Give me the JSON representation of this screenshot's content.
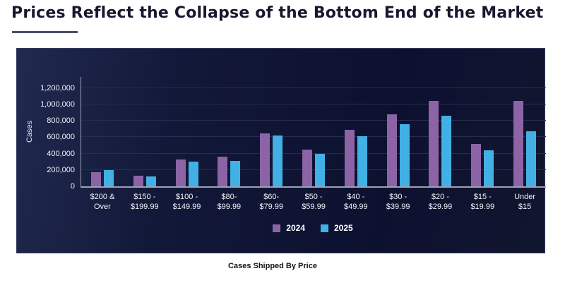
{
  "page": {
    "title": "Prices Reflect the Collapse of the Bottom End of the Market",
    "caption": "Cases Shipped By Price"
  },
  "chart_data": {
    "type": "bar",
    "title": "",
    "xlabel": "",
    "ylabel": "Cases",
    "ylim": [
      0,
      1336000
    ],
    "grid": true,
    "legend_position": "bottom-center",
    "panel_background": "#0d1130",
    "axis_color": "#9aa0b4",
    "gridline_color": "#272c50",
    "categories": [
      "$200 &\nOver",
      "$150 -\n$199.99",
      "$100 -\n$149.99",
      "$80-\n$99.99",
      "$60-\n$79.99",
      "$50 -\n$59.99",
      "$40 -\n$49.99",
      "$30 -\n$39.99",
      "$20 -\n$29.99",
      "$15 -\n$19.99",
      "Under\n$15"
    ],
    "series": [
      {
        "name": "2024",
        "color": "#8c64a6",
        "values": [
          175000,
          130000,
          325000,
          360000,
          650000,
          445000,
          690000,
          880000,
          1040000,
          520000,
          1040000
        ]
      },
      {
        "name": "2025",
        "color": "#41b0e5",
        "values": [
          195000,
          120000,
          305000,
          310000,
          620000,
          400000,
          615000,
          760000,
          865000,
          440000,
          675000
        ]
      }
    ],
    "yticks": [
      {
        "value": 0,
        "label": "0"
      },
      {
        "value": 200000,
        "label": "200,000"
      },
      {
        "value": 400000,
        "label": "400,000"
      },
      {
        "value": 600000,
        "label": "600,000"
      },
      {
        "value": 800000,
        "label": "800,000"
      },
      {
        "value": 1000000,
        "label": "1,000,000"
      },
      {
        "value": 1200000,
        "label": "1,200,000"
      }
    ]
  }
}
